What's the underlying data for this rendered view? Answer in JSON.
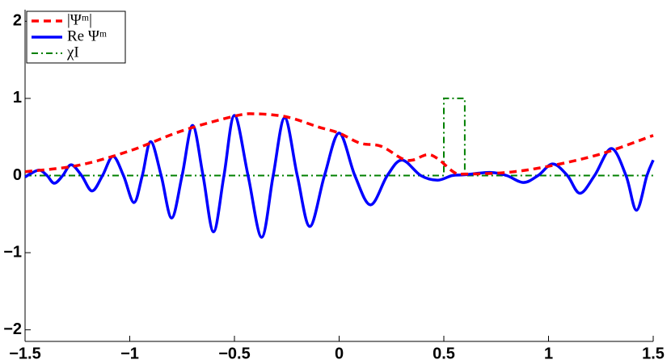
{
  "chart_data": {
    "type": "line",
    "xlim": [
      -1.5,
      1.5
    ],
    "ylim": [
      -2.15,
      2.15
    ],
    "xticks": [
      {
        "value": -1.5,
        "label": "−1.5"
      },
      {
        "value": -1,
        "label": "−1"
      },
      {
        "value": -0.5,
        "label": "−0.5"
      },
      0,
      0.5,
      1,
      1.5
    ],
    "yticks": [
      {
        "value": -2,
        "label": "−2"
      },
      {
        "value": -1,
        "label": "−1"
      },
      0,
      1,
      2
    ],
    "legend": "upper left",
    "series": [
      {
        "name": "|Ψᵐ|",
        "color": "#ff0000",
        "dash": "dashed",
        "x": [
          -1.5,
          -1.25,
          -1.0,
          -0.75,
          -0.5,
          -0.4,
          -0.25,
          -0.1,
          0,
          0.1,
          0.2,
          0.3,
          0.35,
          0.42,
          0.47,
          0.55,
          0.6,
          0.8,
          1.0,
          1.25,
          1.5
        ],
        "values": [
          0.05,
          0.13,
          0.32,
          0.58,
          0.77,
          0.8,
          0.76,
          0.63,
          0.55,
          0.42,
          0.38,
          0.22,
          0.2,
          0.27,
          0.22,
          0.04,
          0.02,
          0.04,
          0.12,
          0.28,
          0.52
        ]
      },
      {
        "name": "Re Ψᵐ",
        "color": "#0000ff",
        "dash": "solid",
        "x": [
          -1.5,
          -1.47,
          -1.43,
          -1.395,
          -1.36,
          -1.32,
          -1.28,
          -1.23,
          -1.18,
          -1.13,
          -1.08,
          -1.03,
          -0.98,
          -0.94,
          -0.9,
          -0.85,
          -0.8,
          -0.75,
          -0.7,
          -0.65,
          -0.6,
          -0.55,
          -0.5,
          -0.435,
          -0.37,
          -0.315,
          -0.26,
          -0.2,
          -0.14,
          -0.07,
          0,
          0.075,
          0.15,
          0.23,
          0.3,
          0.39,
          0.47,
          0.54,
          0.6,
          0.72,
          0.8,
          0.88,
          0.95,
          1.02,
          1.09,
          1.15,
          1.22,
          1.3,
          1.37,
          1.42,
          1.47,
          1.5
        ],
        "values": [
          -0.02,
          0.03,
          0.07,
          0,
          -0.1,
          0,
          0.14,
          0,
          -0.2,
          0,
          0.25,
          0,
          -0.35,
          0,
          0.44,
          0,
          -0.55,
          0,
          0.65,
          0,
          -0.73,
          0,
          0.78,
          0,
          -0.8,
          0,
          0.75,
          0,
          -0.66,
          0,
          0.55,
          0,
          -0.38,
          0,
          0.2,
          0,
          -0.06,
          0,
          0.01,
          0.04,
          0,
          -0.09,
          0,
          0.15,
          0,
          -0.23,
          0,
          0.35,
          0,
          -0.45,
          0,
          0.2
        ]
      },
      {
        "name": "χI",
        "color": "#008000",
        "dash": "dashdot",
        "x": [
          -1.5,
          0.5,
          0.5,
          0.6,
          0.6,
          1.5
        ],
        "values": [
          0,
          0,
          1,
          1,
          0,
          0
        ]
      }
    ]
  }
}
